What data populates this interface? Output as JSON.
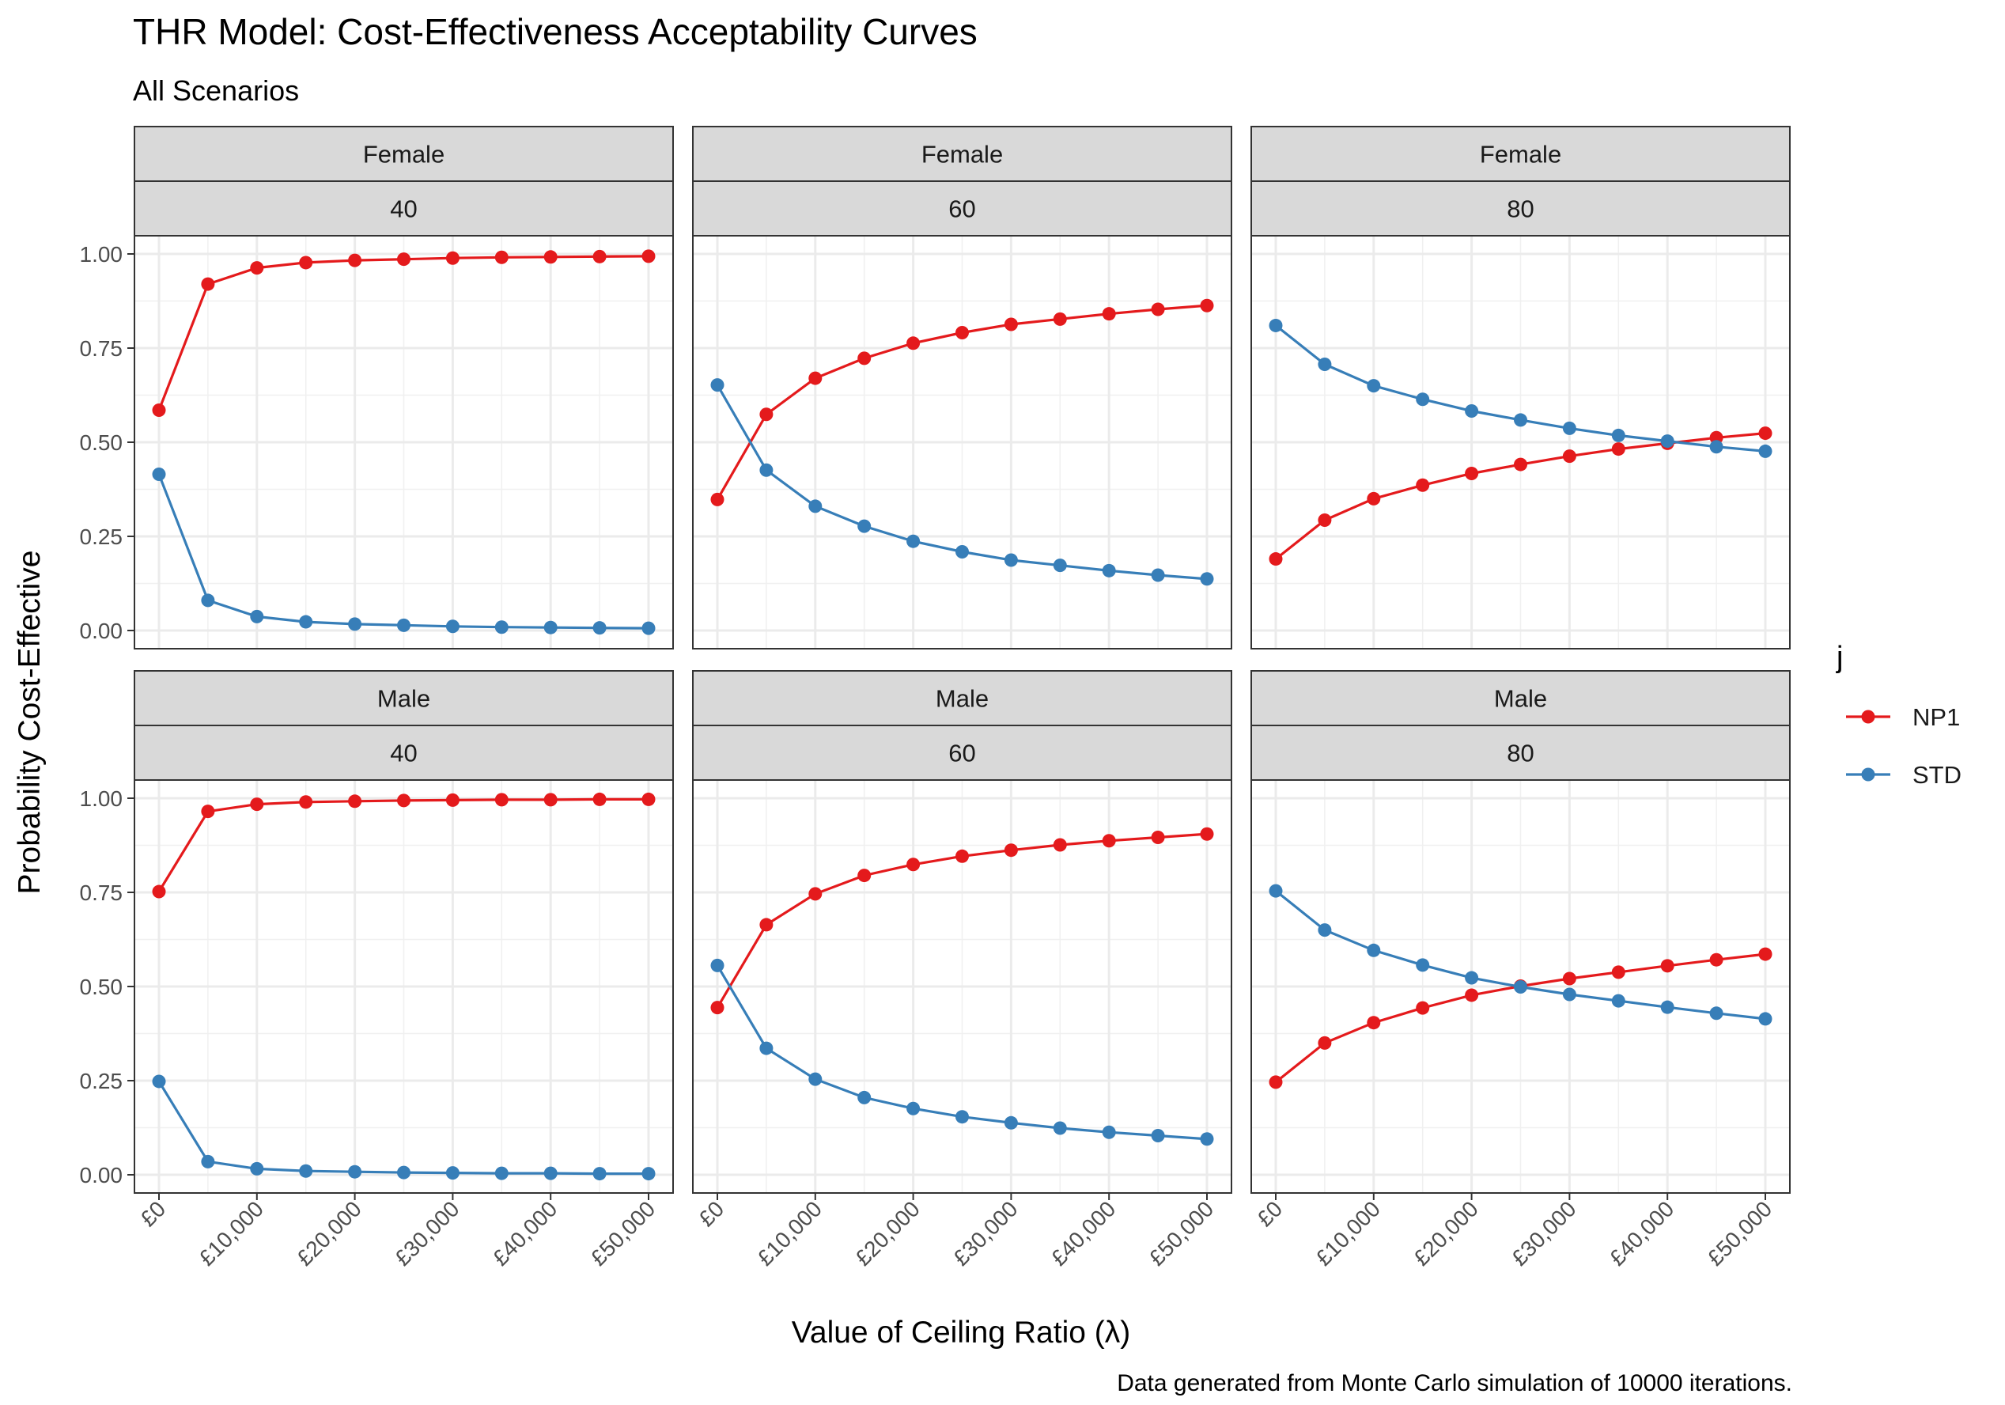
{
  "title": "THR Model: Cost-Effectiveness Acceptability Curves",
  "subtitle": "All Scenarios",
  "caption": "Data generated from Monte Carlo simulation of 10000 iterations.",
  "colors": {
    "NP1": "#e41a1c",
    "STD": "#377eb8"
  },
  "chart_data": {
    "type": "line",
    "xlabel": "Value of Ceiling Ratio (λ)",
    "ylabel": "Probability Cost-Effective",
    "x": [
      0,
      5000,
      10000,
      15000,
      20000,
      25000,
      30000,
      35000,
      40000,
      45000,
      50000
    ],
    "xticks": [
      0,
      10000,
      20000,
      30000,
      40000,
      50000
    ],
    "xtick_labels": [
      "£0",
      "£10,000",
      "£20,000",
      "£30,000",
      "£40,000",
      "£50,000"
    ],
    "yticks": [
      0,
      0.25,
      0.5,
      0.75,
      1.0
    ],
    "ytick_labels": [
      "0.00",
      "0.25",
      "0.50",
      "0.75",
      "1.00"
    ],
    "xlim": [
      0,
      50000
    ],
    "ylim": [
      0,
      1
    ],
    "grid": true,
    "legend": {
      "title": "j",
      "position": "right",
      "entries": [
        "NP1",
        "STD"
      ]
    },
    "panels": [
      {
        "sex": "Female",
        "age": "40",
        "series": [
          {
            "name": "NP1",
            "values": [
              0.585,
              0.92,
              0.963,
              0.977,
              0.983,
              0.986,
              0.989,
              0.991,
              0.992,
              0.993,
              0.994
            ]
          },
          {
            "name": "STD",
            "values": [
              0.415,
              0.08,
              0.037,
              0.023,
              0.017,
              0.014,
              0.011,
              0.009,
              0.008,
              0.007,
              0.006
            ]
          }
        ]
      },
      {
        "sex": "Female",
        "age": "60",
        "series": [
          {
            "name": "NP1",
            "values": [
              0.348,
              0.574,
              0.67,
              0.723,
              0.763,
              0.791,
              0.813,
              0.827,
              0.841,
              0.853,
              0.863
            ]
          },
          {
            "name": "STD",
            "values": [
              0.652,
              0.426,
              0.33,
              0.277,
              0.237,
              0.209,
              0.187,
              0.173,
              0.159,
              0.147,
              0.137
            ]
          }
        ]
      },
      {
        "sex": "Female",
        "age": "80",
        "series": [
          {
            "name": "NP1",
            "values": [
              0.19,
              0.293,
              0.35,
              0.386,
              0.417,
              0.441,
              0.463,
              0.482,
              0.497,
              0.512,
              0.524
            ]
          },
          {
            "name": "STD",
            "values": [
              0.81,
              0.707,
              0.65,
              0.614,
              0.583,
              0.559,
              0.537,
              0.518,
              0.503,
              0.488,
              0.476
            ]
          }
        ]
      },
      {
        "sex": "Male",
        "age": "40",
        "series": [
          {
            "name": "NP1",
            "values": [
              0.752,
              0.965,
              0.984,
              0.99,
              0.992,
              0.994,
              0.995,
              0.996,
              0.996,
              0.997,
              0.997
            ]
          },
          {
            "name": "STD",
            "values": [
              0.248,
              0.035,
              0.016,
              0.01,
              0.008,
              0.006,
              0.005,
              0.004,
              0.004,
              0.003,
              0.003
            ]
          }
        ]
      },
      {
        "sex": "Male",
        "age": "60",
        "series": [
          {
            "name": "NP1",
            "values": [
              0.444,
              0.664,
              0.746,
              0.795,
              0.824,
              0.846,
              0.862,
              0.876,
              0.887,
              0.896,
              0.905
            ]
          },
          {
            "name": "STD",
            "values": [
              0.556,
              0.336,
              0.254,
              0.205,
              0.176,
              0.154,
              0.138,
              0.124,
              0.113,
              0.104,
              0.095
            ]
          }
        ]
      },
      {
        "sex": "Male",
        "age": "80",
        "series": [
          {
            "name": "NP1",
            "values": [
              0.246,
              0.35,
              0.404,
              0.443,
              0.477,
              0.501,
              0.521,
              0.538,
              0.555,
              0.571,
              0.586
            ]
          },
          {
            "name": "STD",
            "values": [
              0.754,
              0.65,
              0.596,
              0.557,
              0.523,
              0.499,
              0.479,
              0.462,
              0.445,
              0.429,
              0.414
            ]
          }
        ]
      }
    ]
  }
}
